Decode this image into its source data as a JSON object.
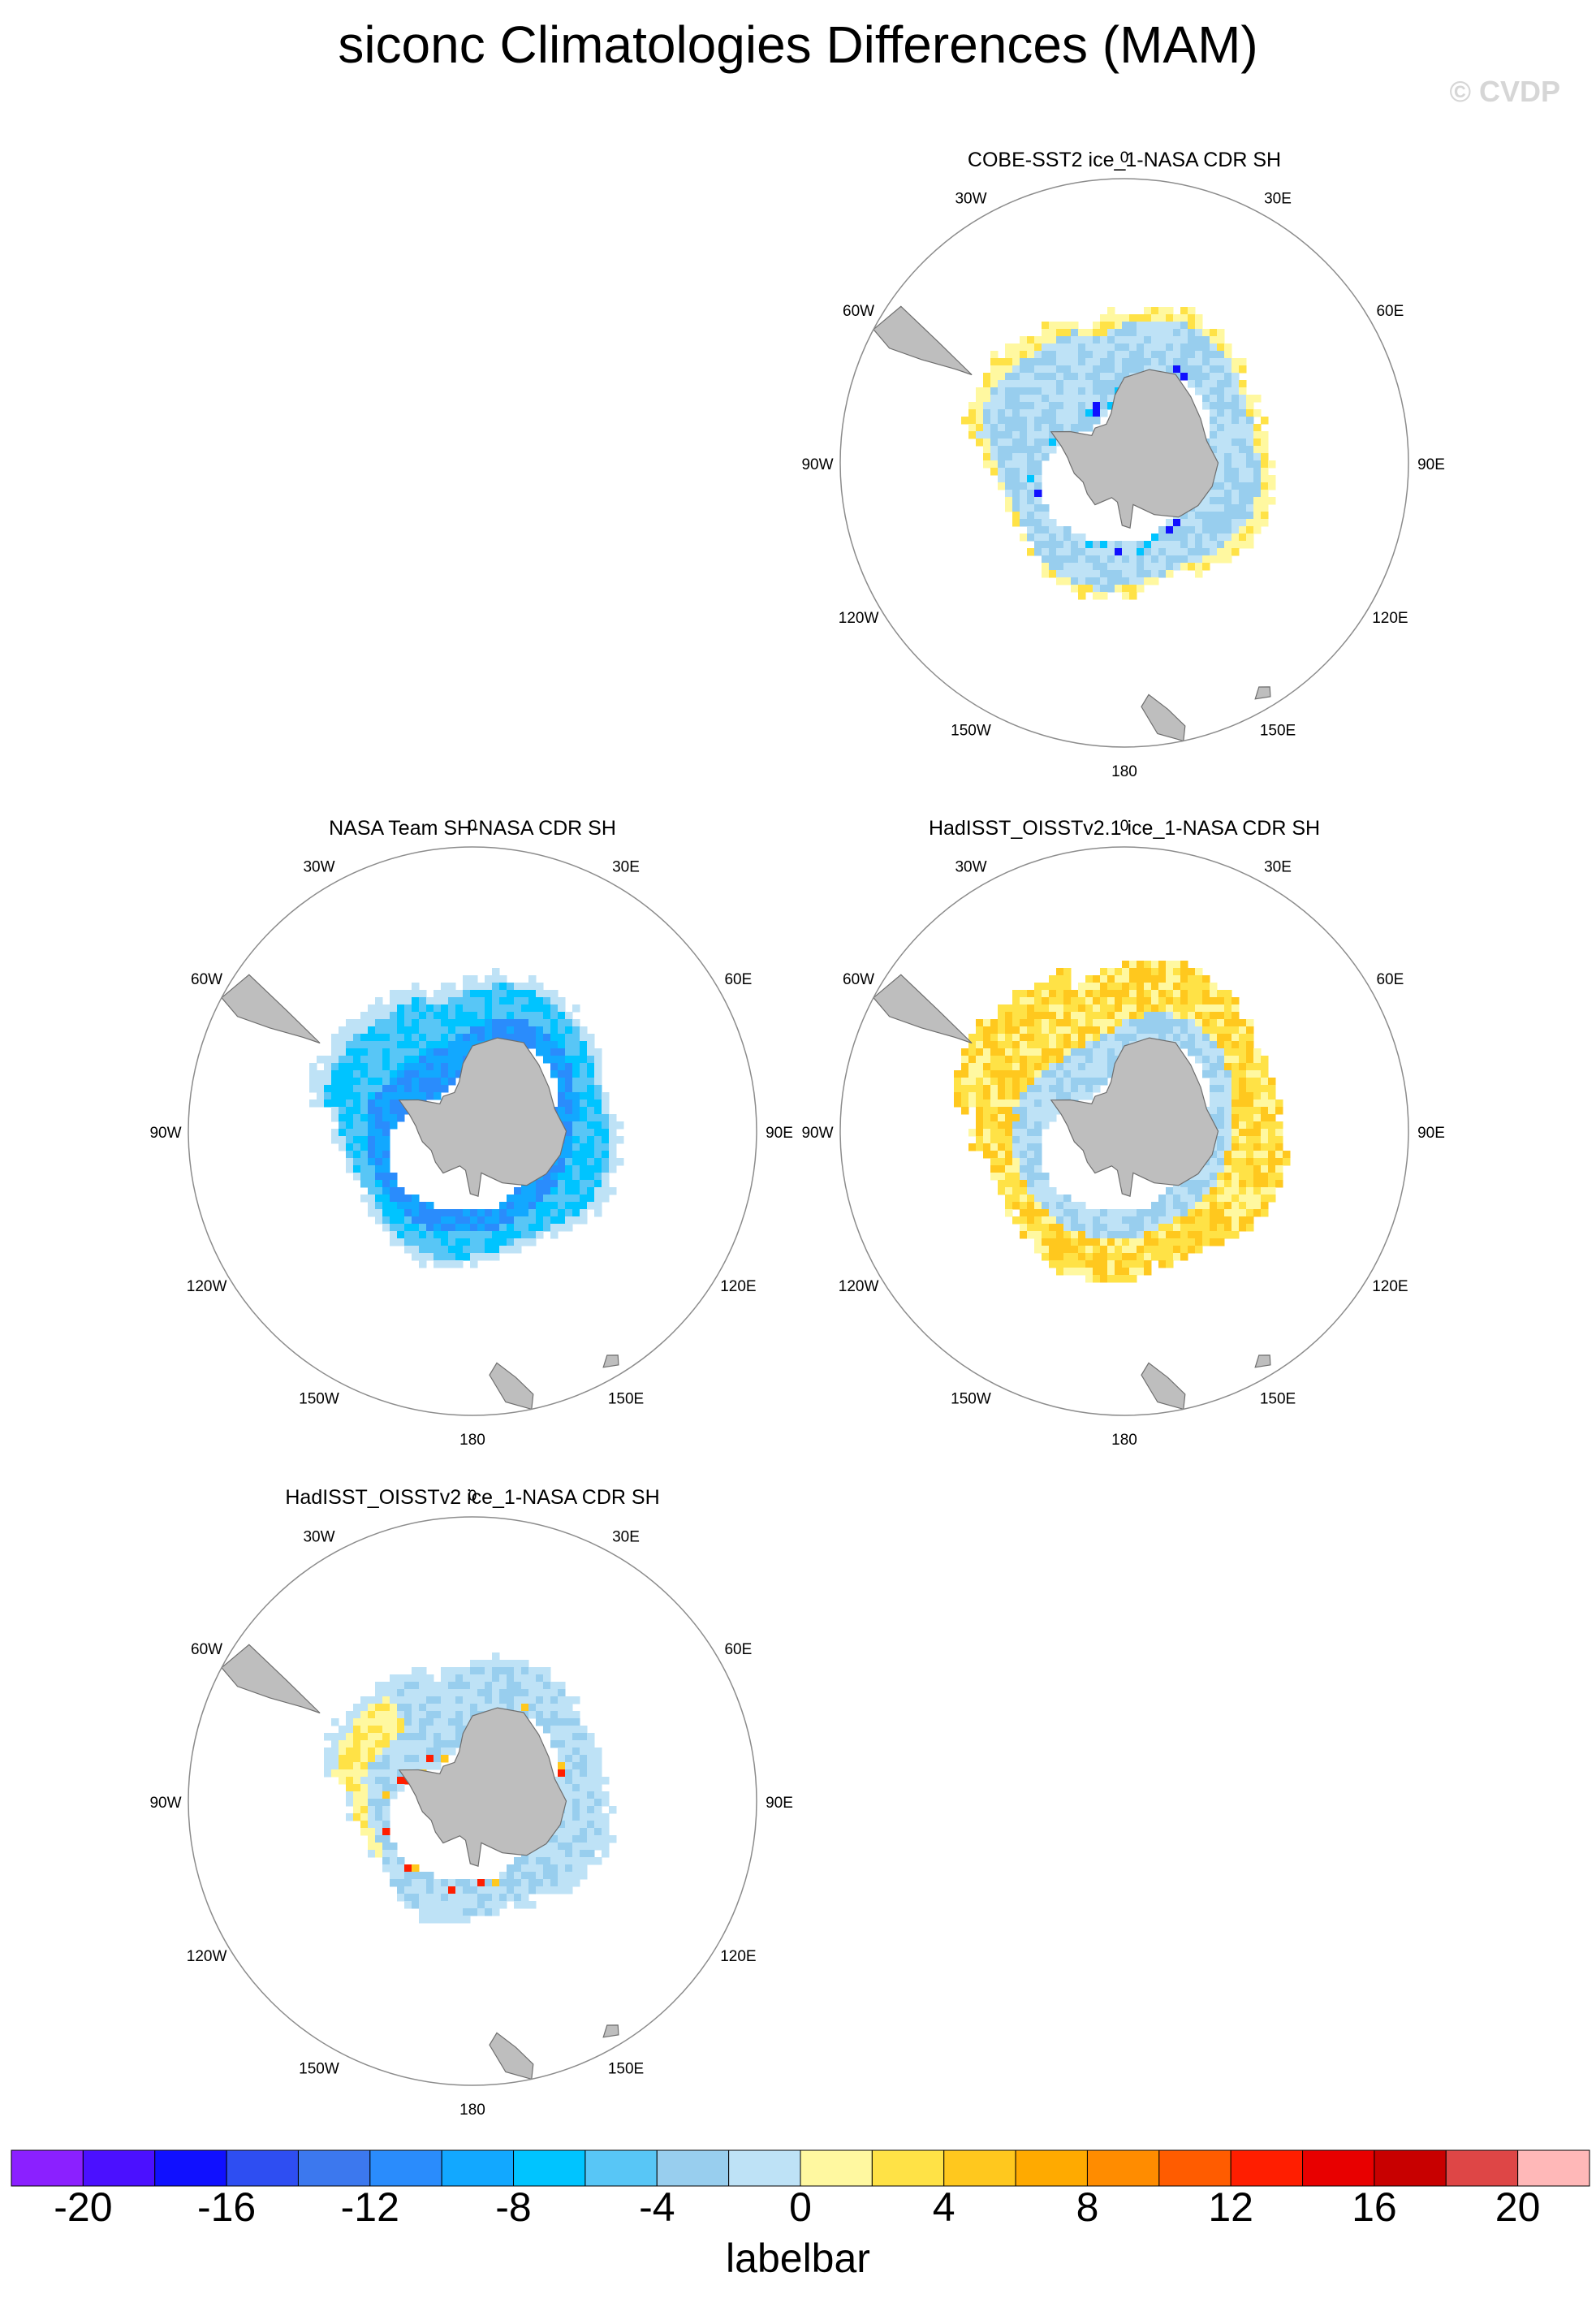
{
  "title": "siconc Climatologies Differences (MAM)",
  "watermark": "© CVDP",
  "colors": {
    "land": "#bebebe",
    "land_edge": "#6e6e6e",
    "circle": "#8c8c8c",
    "blank_gap": "#ffffff"
  },
  "panels": [
    {
      "title": "COBE-SST2 ice_1-NASA CDR SH",
      "pattern": "cobe"
    },
    {
      "title": "NASA Team SH-NASA CDR SH",
      "pattern": "team"
    },
    {
      "title": "HadISST_OISSTv2.1 ice_1-NASA CDR SH",
      "pattern": "had21"
    },
    {
      "title": "HadISST_OISSTv2 ice_1-NASA CDR SH",
      "pattern": "had2"
    }
  ],
  "map_labels": [
    "0",
    "30E",
    "60E",
    "90E",
    "120E",
    "150E",
    "180",
    "150W",
    "120W",
    "90W",
    "60W",
    "30W"
  ],
  "labelbar": {
    "title": "labelbar",
    "tick_labels": [
      "-20",
      "-16",
      "-12",
      "-8",
      "-4",
      "0",
      "4",
      "8",
      "12",
      "16",
      "20"
    ],
    "colors": [
      "#8b20ff",
      "#4b10ff",
      "#1010ff",
      "#2e4ef2",
      "#3c78ee",
      "#2a8cfc",
      "#12a8ff",
      "#00c4ff",
      "#58c6f6",
      "#98ceee",
      "#bee2f6",
      "#fff8a0",
      "#ffe246",
      "#ffc81e",
      "#ffaa00",
      "#ff8c00",
      "#ff5c00",
      "#ff1e00",
      "#e80000",
      "#c80000",
      "#de4646",
      "#ffb8b8"
    ]
  }
}
